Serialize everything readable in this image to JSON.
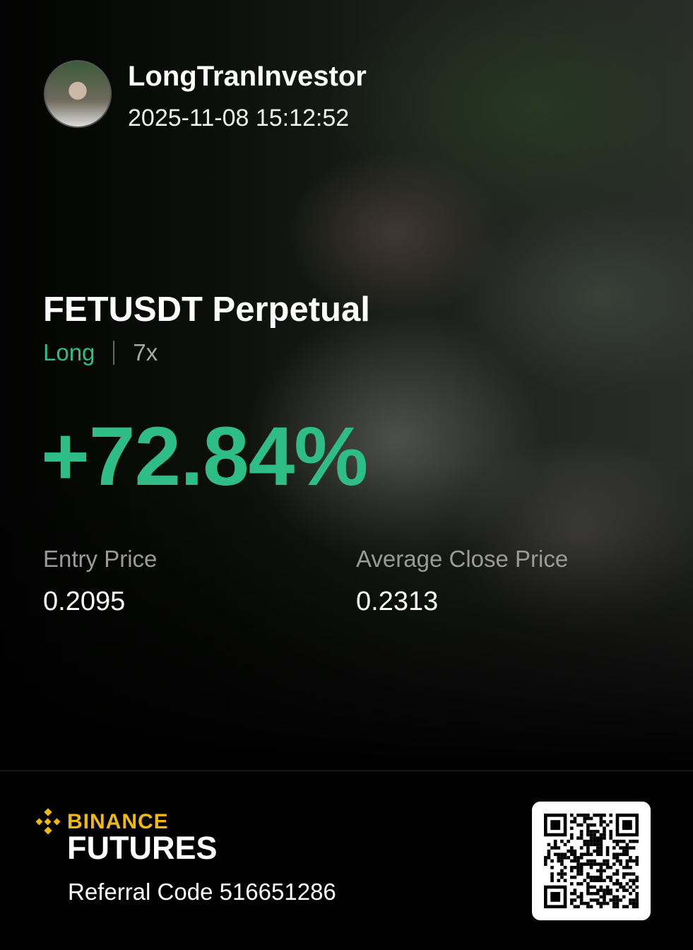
{
  "user": {
    "name": "LongTranInvestor",
    "datetime": "2025-11-08 15:12:52"
  },
  "position": {
    "symbol": "FETUSDT Perpetual",
    "side": "Long",
    "leverage": "7x",
    "pnl_percent": "+72.84%"
  },
  "prices": {
    "entry_label": "Entry Price",
    "entry_value": "0.2095",
    "close_label": "Average Close Price",
    "close_value": "0.2313"
  },
  "footer": {
    "brand": "BINANCE",
    "product": "FUTURES",
    "referral": "Referral Code 516651286"
  },
  "colors": {
    "profit": "#2ebd85",
    "brand": "#f0b90b"
  },
  "icons": {
    "logo": "binance-logo-icon",
    "qr": "qr-code"
  }
}
